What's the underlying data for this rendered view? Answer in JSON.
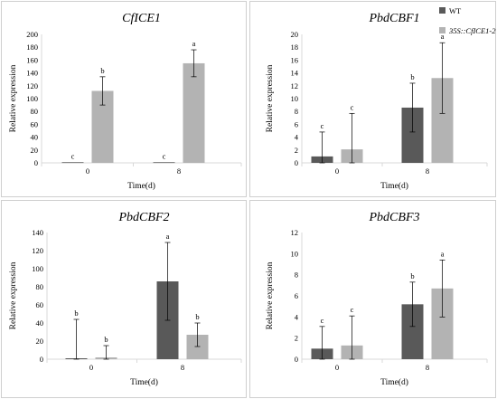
{
  "colors": {
    "wt": "#595959",
    "transgenic": "#b3b3b3",
    "axis": "#d9d9d9",
    "errorbar": "#000000"
  },
  "legend": {
    "wt": "WT",
    "transgenic": "35S::CfICE1-2"
  },
  "chart_data": [
    {
      "type": "bar",
      "title": "CfICE1",
      "xlabel": "Time(d)",
      "ylabel": "Relative expression",
      "categories": [
        "0",
        "8"
      ],
      "ylim": [
        0,
        200
      ],
      "yticks": [
        0,
        20,
        40,
        60,
        80,
        100,
        120,
        140,
        160,
        180,
        200
      ],
      "grid": false,
      "series": [
        {
          "name": "WT",
          "values": [
            1,
            1
          ],
          "errors": [
            0,
            0
          ],
          "labels": [
            "c",
            "c"
          ]
        },
        {
          "name": "35S::CfICE1-2",
          "values": [
            112,
            155
          ],
          "errors": [
            22,
            21
          ],
          "labels": [
            "b",
            "a"
          ]
        }
      ]
    },
    {
      "type": "bar",
      "title": "PbdCBF1",
      "xlabel": "Time(d)",
      "ylabel": "Relative expression",
      "categories": [
        "0",
        "8"
      ],
      "ylim": [
        0,
        20
      ],
      "yticks": [
        0,
        2,
        4,
        6,
        8,
        10,
        12,
        14,
        16,
        18,
        20
      ],
      "grid": false,
      "legend_position": "top-right",
      "series": [
        {
          "name": "WT",
          "values": [
            1.0,
            8.6
          ],
          "errors": [
            3.8,
            3.8
          ],
          "labels": [
            "c",
            "b"
          ]
        },
        {
          "name": "35S::CfICE1-2",
          "values": [
            2.1,
            13.2
          ],
          "errors": [
            5.6,
            5.5
          ],
          "labels": [
            "c",
            "a"
          ]
        }
      ]
    },
    {
      "type": "bar",
      "title": "PbdCBF2",
      "xlabel": "Time(d)",
      "ylabel": "Relative expression",
      "categories": [
        "0",
        "8"
      ],
      "ylim": [
        0,
        140
      ],
      "yticks": [
        0,
        20,
        40,
        60,
        80,
        100,
        120,
        140
      ],
      "grid": false,
      "series": [
        {
          "name": "WT",
          "values": [
            1,
            86
          ],
          "errors": [
            43,
            43
          ],
          "labels": [
            "b",
            "a"
          ]
        },
        {
          "name": "35S::CfICE1-2",
          "values": [
            2,
            27
          ],
          "errors": [
            13,
            13
          ],
          "labels": [
            "b",
            "b"
          ]
        }
      ]
    },
    {
      "type": "bar",
      "title": "PbdCBF3",
      "xlabel": "Time(d)",
      "ylabel": "Relative expression",
      "categories": [
        "0",
        "8"
      ],
      "ylim": [
        0,
        12
      ],
      "yticks": [
        0,
        2,
        4,
        6,
        8,
        10,
        12
      ],
      "grid": false,
      "series": [
        {
          "name": "WT",
          "values": [
            1.0,
            5.2
          ],
          "errors": [
            2.1,
            2.1
          ],
          "labels": [
            "c",
            "b"
          ]
        },
        {
          "name": "35S::CfICE1-2",
          "values": [
            1.3,
            6.7
          ],
          "errors": [
            2.8,
            2.7
          ],
          "labels": [
            "c",
            "a"
          ]
        }
      ]
    }
  ]
}
